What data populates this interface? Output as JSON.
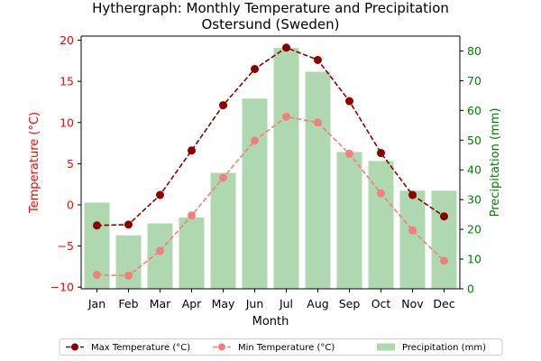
{
  "chart_data": {
    "type": "bar",
    "title_lines": [
      "Hythergraph: Monthly Temperature and Precipitation",
      "Ostersund (Sweden)"
    ],
    "xlabel": "Month",
    "ylabel_left": "Temperature (°C)",
    "ylabel_right": "Precipitation (mm)",
    "categories": [
      "Jan",
      "Feb",
      "Mar",
      "Apr",
      "May",
      "Jun",
      "Jul",
      "Aug",
      "Sep",
      "Oct",
      "Nov",
      "Dec"
    ],
    "y_left": {
      "lim": [
        -10.2,
        20.5
      ],
      "ticks": [
        -10,
        -5,
        0,
        5,
        10,
        15,
        20
      ],
      "color": "#ff0000"
    },
    "y_right": {
      "lim": [
        0,
        85
      ],
      "ticks": [
        0,
        10,
        20,
        30,
        40,
        50,
        60,
        70,
        80
      ],
      "color": "#008000"
    },
    "grid": false,
    "legend_position": "bottom-center",
    "series": [
      {
        "name": "Max Temperature (°C)",
        "kind": "line",
        "axis": "left",
        "line_style": "dashed",
        "marker": "circle",
        "color": "#8b0000",
        "values": [
          -2.5,
          -2.4,
          1.2,
          6.6,
          12.1,
          16.5,
          19.1,
          17.6,
          12.6,
          6.3,
          1.2,
          -1.4
        ]
      },
      {
        "name": "Min Temperature (°C)",
        "kind": "line",
        "axis": "left",
        "line_style": "dashed",
        "marker": "circle",
        "color": "#f08080",
        "values": [
          -8.5,
          -8.6,
          -5.6,
          -1.3,
          3.3,
          7.8,
          10.7,
          10.0,
          6.2,
          1.4,
          -3.1,
          -6.8
        ]
      },
      {
        "name": "Precipitation (mm)",
        "kind": "bar",
        "axis": "right",
        "color": "#b0d8b0",
        "values": [
          29,
          18,
          22,
          24,
          39,
          64,
          81,
          73,
          46,
          43,
          33,
          33
        ]
      }
    ]
  }
}
